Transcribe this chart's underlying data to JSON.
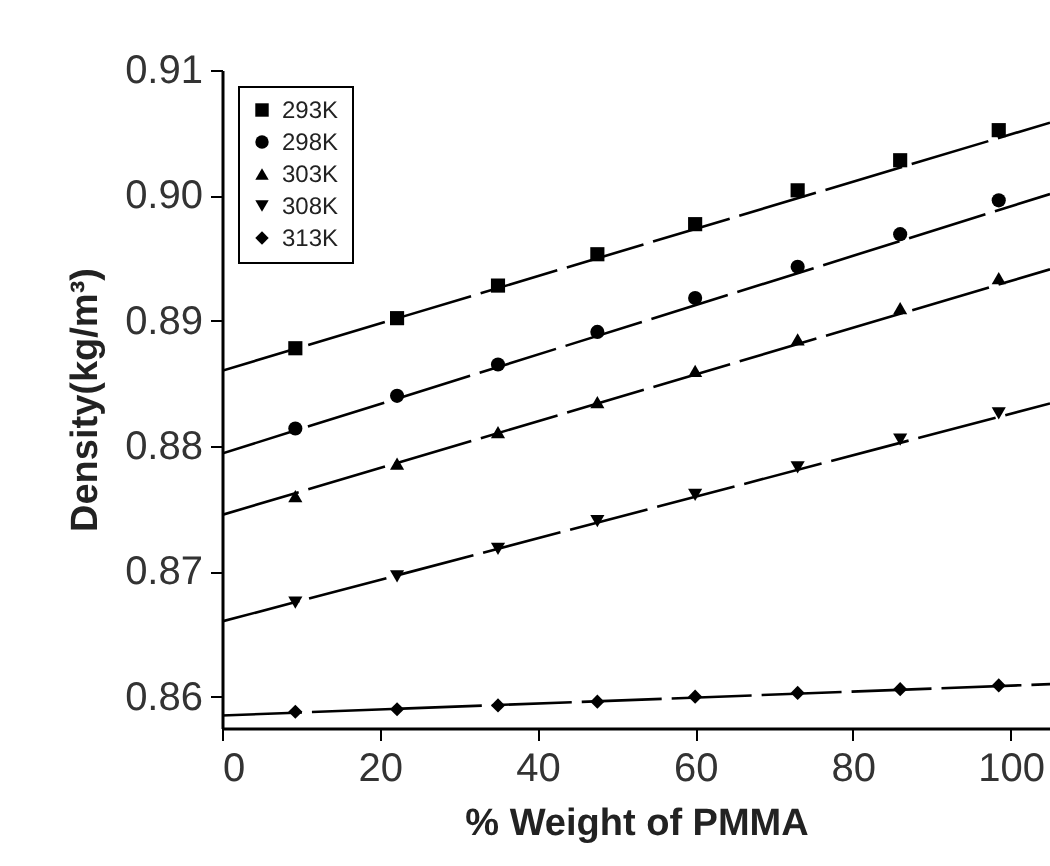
{
  "chart_data": {
    "type": "scatter",
    "xlabel": "% Weight of PMMA",
    "ylabel": "Density(kg/m³)",
    "xlim": [
      0,
      105
    ],
    "xticks": [
      0,
      20,
      40,
      60,
      80,
      100
    ],
    "ylim": [
      0.8575,
      0.91
    ],
    "yticks": [
      0.86,
      0.87,
      0.88,
      0.89,
      {
        "value": 0.9,
        "label": "0.90"
      },
      0.91
    ],
    "grid": false,
    "legend": "top left",
    "series": [
      {
        "name": "293K",
        "marker": "square",
        "color": "#000000",
        "x": [
          9.3,
          22.2,
          35,
          47.6,
          60,
          73,
          86,
          98.5
        ],
        "values": [
          0.8878,
          0.8902,
          0.8928,
          0.8953,
          0.8977,
          0.9004,
          0.9028,
          0.9052
        ]
      },
      {
        "name": "298K",
        "marker": "circle",
        "color": "#000000",
        "x": [
          9.3,
          22.2,
          35,
          47.6,
          60,
          73,
          86,
          98.5
        ],
        "values": [
          0.8814,
          0.884,
          0.8865,
          0.8891,
          0.8918,
          0.8943,
          0.8969,
          0.8996
        ]
      },
      {
        "name": "303K",
        "marker": "triangle",
        "color": "#000000",
        "x": [
          9.3,
          22.2,
          35,
          47.6,
          60,
          73,
          86,
          98.5
        ],
        "values": [
          0.876,
          0.8786,
          0.8811,
          0.8835,
          0.886,
          0.8885,
          0.891,
          0.8934
        ]
      },
      {
        "name": "308K",
        "marker": "triangle-down",
        "color": "#000000",
        "x": [
          9.3,
          22.2,
          35,
          47.6,
          60,
          73,
          86,
          98.5
        ],
        "values": [
          0.8675,
          0.8696,
          0.8718,
          0.874,
          0.8761,
          0.8783,
          0.8805,
          0.8826
        ]
      },
      {
        "name": "313K",
        "marker": "diamond",
        "color": "#000000",
        "x": [
          9.3,
          22.2,
          35,
          47.6,
          60,
          73,
          86,
          98.5
        ],
        "values": [
          0.8588,
          0.859,
          0.8593,
          0.8596,
          0.86,
          0.8603,
          0.8606,
          0.8609
        ]
      },
      {
        "type": "line",
        "color": "#000000",
        "x": [
          0,
          105
        ],
        "values": [
          0.886,
          0.9058
        ],
        "line_style": "dashed"
      },
      {
        "type": "line",
        "color": "#000000",
        "x": [
          0,
          105
        ],
        "values": [
          0.8794,
          0.9001
        ],
        "line_style": "dashed"
      },
      {
        "type": "line",
        "color": "#000000",
        "x": [
          0,
          105
        ],
        "values": [
          0.8745,
          0.8941
        ],
        "line_style": "dashed"
      },
      {
        "type": "line",
        "color": "#000000",
        "x": [
          0,
          105
        ],
        "values": [
          0.866,
          0.8834
        ],
        "line_style": "dashed"
      },
      {
        "type": "line",
        "color": "#000000",
        "x": [
          0,
          105
        ],
        "values": [
          0.8585,
          0.861
        ],
        "line_style": "dashed"
      }
    ]
  }
}
